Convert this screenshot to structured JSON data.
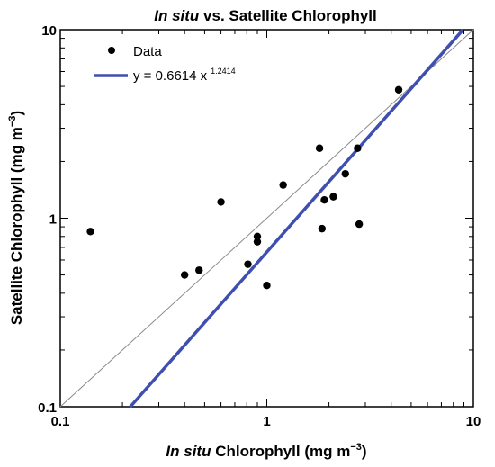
{
  "chart_data": {
    "type": "scatter",
    "title": {
      "italic": "In situ",
      "rest": " vs. Satellite Chlorophyll"
    },
    "xlabel": {
      "italic": "In situ",
      "rest": " Chlorophyll (mg m",
      "sup": "−3",
      "close": ")"
    },
    "ylabel": {
      "main": "Satellite Chlorophyll (mg m",
      "sup": "−3",
      "close": ")"
    },
    "x_scale": "log",
    "y_scale": "log",
    "xlim": [
      0.1,
      10
    ],
    "ylim": [
      0.1,
      10
    ],
    "x_ticks": [
      {
        "value": 0.1,
        "label": "0.1"
      },
      {
        "value": 1,
        "label": "1"
      },
      {
        "value": 10,
        "label": "10"
      }
    ],
    "y_ticks": [
      {
        "value": 0.1,
        "label": "0.1"
      },
      {
        "value": 1,
        "label": "1"
      },
      {
        "value": 10,
        "label": "10"
      }
    ],
    "grid": false,
    "legend": {
      "placement": "top-left",
      "entries": [
        {
          "label": "Data",
          "marker": "point"
        },
        {
          "label": "y = 0.6614 x",
          "sup": "1.2414",
          "marker": "line"
        }
      ]
    },
    "series": [
      {
        "name": "Data",
        "color": "#000000",
        "points": [
          {
            "x": 0.14,
            "y": 0.85
          },
          {
            "x": 0.4,
            "y": 0.5
          },
          {
            "x": 0.47,
            "y": 0.53
          },
          {
            "x": 0.6,
            "y": 1.22
          },
          {
            "x": 0.81,
            "y": 0.57
          },
          {
            "x": 0.9,
            "y": 0.8
          },
          {
            "x": 0.9,
            "y": 0.75
          },
          {
            "x": 1.0,
            "y": 0.44
          },
          {
            "x": 1.2,
            "y": 1.5
          },
          {
            "x": 1.8,
            "y": 2.35
          },
          {
            "x": 1.85,
            "y": 0.88
          },
          {
            "x": 1.9,
            "y": 1.25
          },
          {
            "x": 2.1,
            "y": 1.3
          },
          {
            "x": 2.4,
            "y": 1.72
          },
          {
            "x": 2.75,
            "y": 2.35
          },
          {
            "x": 2.8,
            "y": 0.93
          },
          {
            "x": 4.35,
            "y": 4.8
          }
        ]
      },
      {
        "name": "y = 0.6614 x^1.2414",
        "type": "line",
        "color": "#3f4fb0",
        "fit": {
          "a": 0.6614,
          "b": 1.2414
        },
        "x_range": [
          0.2,
          10
        ]
      },
      {
        "type": "line",
        "role": "1:1 line",
        "color": "#8a8a8a",
        "x_range": [
          0.1,
          10
        ]
      }
    ]
  }
}
